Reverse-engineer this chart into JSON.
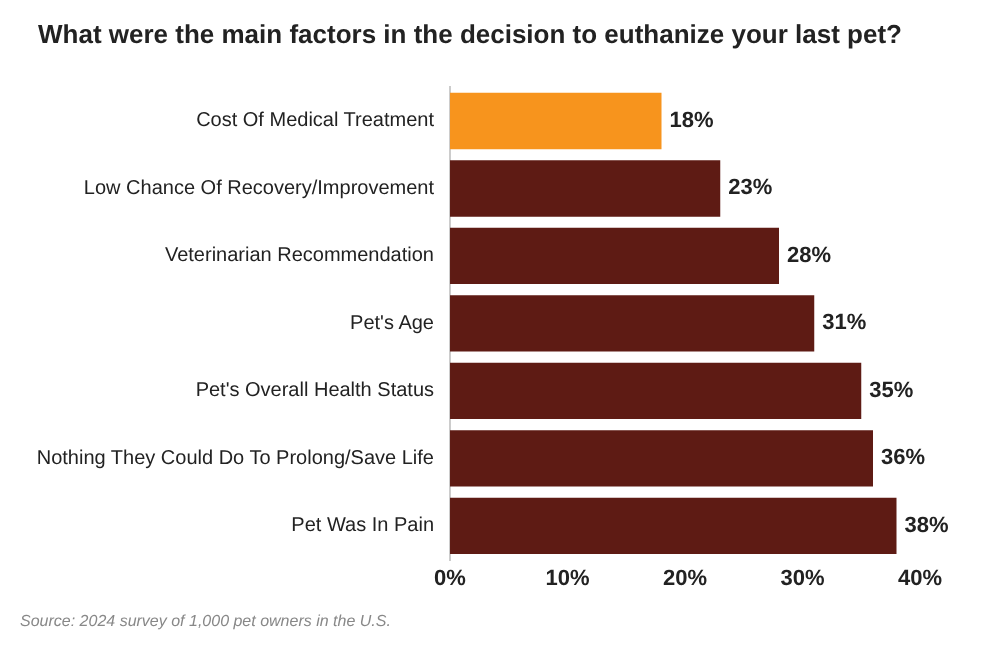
{
  "chart_data": {
    "type": "bar",
    "orientation": "horizontal",
    "title": "What were the main factors in the decision to euthanize your last pet?",
    "categories": [
      "Cost Of Medical Treatment",
      "Low Chance Of Recovery/Improvement",
      "Veterinarian Recommendation",
      "Pet's Age",
      "Pet's Overall Health Status",
      "Nothing They Could Do To Prolong/Save Life",
      "Pet Was In Pain"
    ],
    "values": [
      18,
      23,
      28,
      31,
      35,
      36,
      38
    ],
    "value_labels": [
      "18%",
      "23%",
      "28%",
      "31%",
      "35%",
      "36%",
      "38%"
    ],
    "colors": [
      "#f7941d",
      "#5e1b14",
      "#5e1b14",
      "#5e1b14",
      "#5e1b14",
      "#5e1b14",
      "#5e1b14"
    ],
    "xlim": [
      0,
      40
    ],
    "xticks": [
      {
        "value": 0,
        "label": "0%"
      },
      {
        "value": 10,
        "label": "10%"
      },
      {
        "value": 20,
        "label": "20%"
      },
      {
        "value": 30,
        "label": "30%"
      },
      {
        "value": 40,
        "label": "40%"
      }
    ],
    "grid": false,
    "legend": false,
    "annotations": [
      "Source: 2024 survey of 1,000 pet owners in the U.S."
    ]
  }
}
